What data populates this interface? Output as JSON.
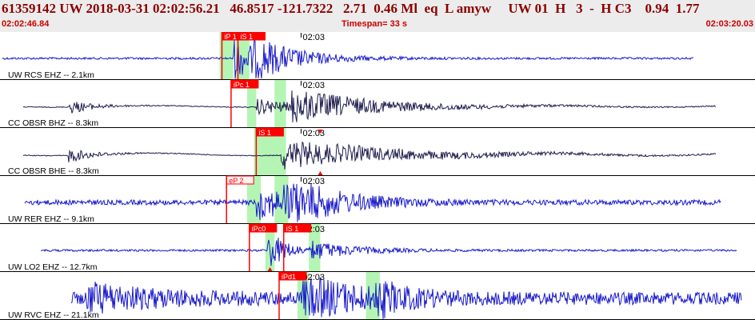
{
  "header": {
    "event_line": "61359142 UW 2018-03-31 02:02:56.21   46.8517 -121.7322   2.71  0.46 Ml  eq  L amyw     UW 01  H   3  -  H C3    0.94  1.77",
    "start_time": "02:02:46.84",
    "timespan_label": "Timespan=  33 s",
    "end_time": "02:03:20.03"
  },
  "colors": {
    "header_bg": "#ececec",
    "header_text": "#8b0000",
    "time_text": "#cc0000",
    "trace_blue": "#1a1acc",
    "trace_dark": "#202050",
    "pick_red": "#ff0000",
    "pick_window_green": "#b4f5b4"
  },
  "timeline": {
    "start_s": 0,
    "end_s": 33,
    "minute_mark_label": "02:03",
    "minute_mark_s": 13.16
  },
  "traces": [
    {
      "label": "UW RCS EHZ -- 2.1km",
      "color": "blue",
      "signal_start_s": 0.1,
      "signal_end_s": 30.3,
      "noise": 0.05,
      "drift": 0,
      "bursts": [
        {
          "t": 10.2,
          "amp": 1.0,
          "decay": 1.6
        },
        {
          "t": 11.0,
          "amp": 0.6,
          "decay": 2.0
        }
      ],
      "picks": [
        {
          "label": "iP 1",
          "t": 9.7,
          "style": "filled"
        },
        {
          "label": "iS 1",
          "t": 10.4,
          "style": "filled"
        }
      ],
      "windows": [
        {
          "from": 9.6,
          "to": 10.2
        },
        {
          "from": 10.3,
          "to": 10.9
        }
      ],
      "triangles": []
    },
    {
      "label": "CC OBSR BHZ -- 8.3km",
      "color": "dark",
      "signal_start_s": 1.0,
      "signal_end_s": 31.3,
      "noise": 0.02,
      "drift": 0.12,
      "bursts": [
        {
          "t": 3.0,
          "amp": 0.35,
          "decay": 1.0
        },
        {
          "t": 11.2,
          "amp": 0.4,
          "decay": 2.0
        },
        {
          "t": 12.7,
          "amp": 0.7,
          "decay": 4.0
        }
      ],
      "picks": [
        {
          "label": "iPc 1",
          "t": 10.1,
          "style": "filled"
        }
      ],
      "windows": [
        {
          "from": 10.8,
          "to": 11.2
        },
        {
          "from": 12.0,
          "to": 12.5
        }
      ],
      "triangles": []
    },
    {
      "label": "CC OBSR BHE -- 8.3km",
      "color": "dark",
      "signal_start_s": 1.0,
      "signal_end_s": 31.3,
      "noise": 0.02,
      "drift": 0.2,
      "bursts": [
        {
          "t": 3.0,
          "amp": 0.35,
          "decay": 1.0
        },
        {
          "t": 12.3,
          "amp": 0.7,
          "decay": 5.0
        }
      ],
      "picks": [
        {
          "label": "iS 1",
          "t": 11.2,
          "style": "filled"
        }
      ],
      "windows": [
        {
          "from": 11.1,
          "to": 12.5
        }
      ],
      "triangles": [
        {
          "t": 14.0,
          "pos": "top"
        },
        {
          "t": 14.0,
          "pos": "bottom"
        }
      ]
    },
    {
      "label": "UW RER EHZ -- 9.1km",
      "color": "blue",
      "signal_start_s": 1.1,
      "signal_end_s": 31.5,
      "noise": 0.12,
      "drift": 0,
      "bursts": [
        {
          "t": 11.2,
          "amp": 0.8,
          "decay": 2.0
        },
        {
          "t": 12.4,
          "amp": 1.0,
          "decay": 2.2
        }
      ],
      "picks": [
        {
          "label": "eP 2",
          "t": 9.9,
          "style": "outline"
        }
      ],
      "windows": [
        {
          "from": 10.8,
          "to": 11.4
        },
        {
          "from": 12.0,
          "to": 12.6
        }
      ],
      "triangles": []
    },
    {
      "label": "UW LO2 EHZ -- 12.7km",
      "color": "blue",
      "signal_start_s": 1.8,
      "signal_end_s": 32.2,
      "noise": 0.05,
      "drift": 0,
      "bursts": [
        {
          "t": 11.7,
          "amp": 1.0,
          "decay": 0.8
        },
        {
          "t": 13.6,
          "amp": 0.4,
          "decay": 2.0
        }
      ],
      "picks": [
        {
          "label": "iPc0",
          "t": 10.9,
          "style": "filled"
        },
        {
          "label": "iS 1",
          "t": 12.4,
          "style": "filled"
        }
      ],
      "windows": [
        {
          "from": 11.6,
          "to": 12.0
        },
        {
          "from": 13.5,
          "to": 14.0
        }
      ],
      "triangles": [
        {
          "t": 11.8,
          "pos": "bottom"
        }
      ]
    },
    {
      "label": "UW RVC EHZ -- 21.1km",
      "color": "blue",
      "signal_start_s": 3.1,
      "signal_end_s": 32.4,
      "noise": 0.3,
      "drift": 0,
      "bursts": [
        {
          "t": 3.8,
          "amp": 0.6,
          "decay": 3.0
        },
        {
          "t": 13.2,
          "amp": 1.0,
          "decay": 2.5
        },
        {
          "t": 16.3,
          "amp": 0.7,
          "decay": 1.0
        }
      ],
      "picks": [
        {
          "label": "iPd1",
          "t": 12.2,
          "style": "filled"
        }
      ],
      "windows": [
        {
          "from": 13.0,
          "to": 13.5
        },
        {
          "from": 16.0,
          "to": 16.6
        }
      ],
      "triangles": []
    }
  ]
}
